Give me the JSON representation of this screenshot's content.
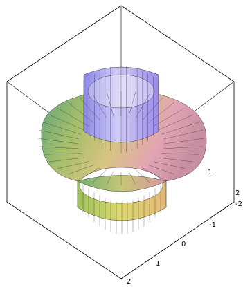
{
  "chart_data": {
    "type": "surface3d",
    "title": "",
    "xlabel": "",
    "ylabel": "",
    "zlabel": "",
    "axes_style": "boxed",
    "grid": false,
    "legend": "none",
    "x_range": [
      -2,
      2
    ],
    "y_range": [
      -2,
      2
    ],
    "x_ticks": [
      "-2",
      "-1",
      "0",
      "1",
      "2"
    ],
    "y_ticks": [
      "1",
      "2"
    ],
    "surface": {
      "shape": "surface of revolution with a wide flared brim",
      "inner_radius": 1,
      "outer_radius": 2,
      "z_bottom": -1,
      "z_top": 1,
      "shading": "rainbow"
    },
    "colors": {
      "top": "#a79bf2",
      "upper_inner": "#c9c3f5",
      "brim_left": "#7ab574",
      "brim_right": "#d6a0a6",
      "bottom": "#b9c55c",
      "box": "#000000"
    }
  }
}
